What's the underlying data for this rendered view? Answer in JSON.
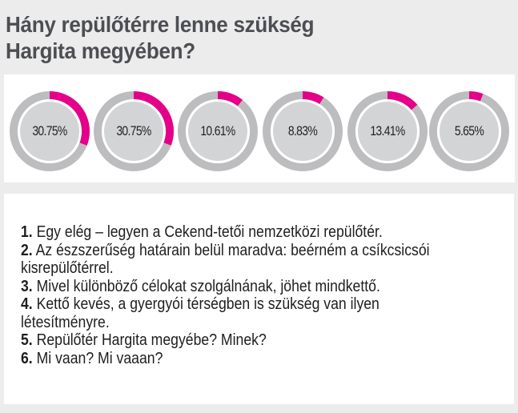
{
  "header": {
    "title_line1": "Hány repülőtérre lenne szükség",
    "title_line2": "Hargita megyében?"
  },
  "colors": {
    "accent": "#e5008a",
    "ring_track": "#bdbdbf",
    "ring_inner": "#d3d4d6",
    "background": "#ececec",
    "panel": "#ffffff",
    "title": "#4d4e53"
  },
  "rings": [
    {
      "label": "30.75%",
      "value": 30.75
    },
    {
      "label": "30.75%",
      "value": 30.75
    },
    {
      "label": "10.61%",
      "value": 10.61
    },
    {
      "label": "8.83%",
      "value": 8.83
    },
    {
      "label": "13.41%",
      "value": 13.41
    },
    {
      "label": "5.65%",
      "value": 5.65
    }
  ],
  "answers": [
    {
      "num": "1.",
      "text": " Egy elég – legyen a Cekend-tetői nemzetközi repülőtér."
    },
    {
      "num": "2.",
      "text": " Az észszerűség határain belül maradva: beérném a csíkcsicsói kisrepülőtérrel."
    },
    {
      "num": "3.",
      "text": " Mivel különböző célokat szolgálnának, jöhet mindkettő."
    },
    {
      "num": "4.",
      "text": " Kettő kevés, a gyergyói térségben is szükség van ilyen létesítményre."
    },
    {
      "num": "5.",
      "text": " Repülőtér Hargita megyébe? Minek?"
    },
    {
      "num": "6.",
      "text": " Mi vaan? Mi vaaan?"
    }
  ],
  "chart_data": {
    "type": "pie",
    "title": "Hány repülőtérre lenne szükség Hargita megyében?",
    "style": "donut-rings (one ring per answer option)",
    "categories": [
      "1. Egy elég – legyen a Cekend-tetői nemzetközi repülőtér.",
      "2. Az észszerűség határain belül maradva: beérném a csíkcsicsói kisrepülőtérrel.",
      "3. Mivel különböző célokat szolgálnának, jöhet mindkettő.",
      "4. Kettő kevés, a gyergyói térségben is szükség van ilyen létesítményre.",
      "5. Repülőtér Hargita megyébe? Minek?",
      "6. Mi vaan? Mi vaaan?"
    ],
    "values": [
      30.75,
      30.75,
      10.61,
      8.83,
      13.41,
      5.65
    ],
    "unit": "%",
    "accent_color": "#e5008a"
  }
}
